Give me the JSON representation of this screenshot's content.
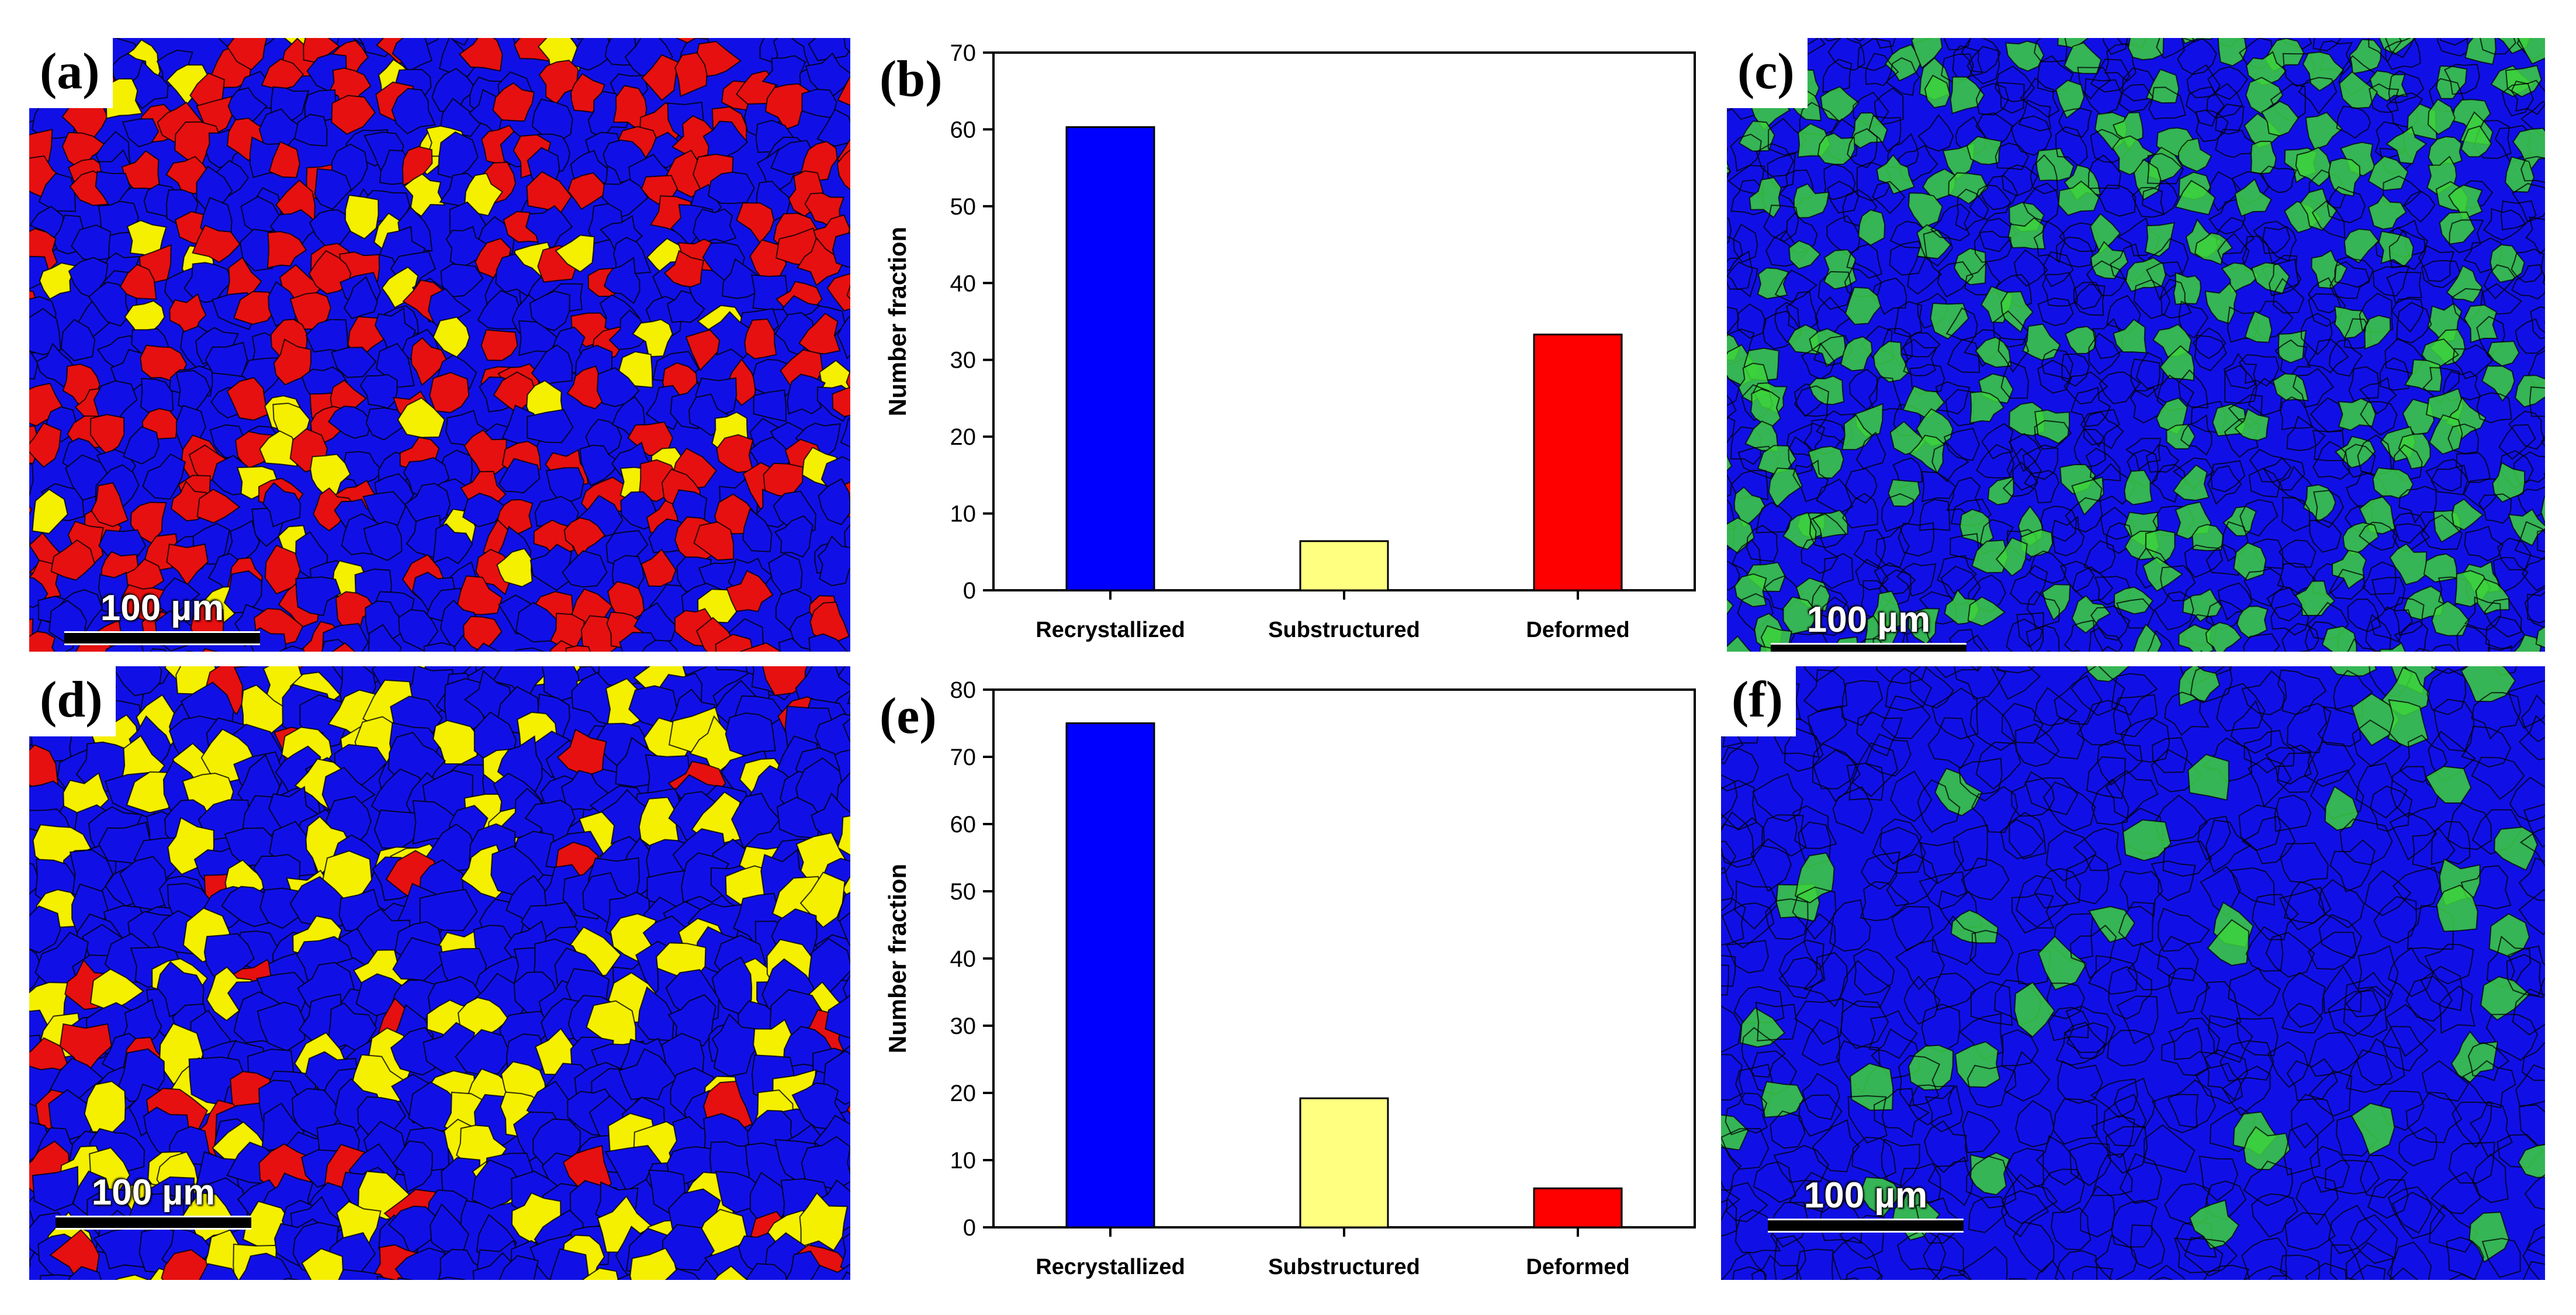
{
  "panels": {
    "a": {
      "label": "(a)",
      "scale": "100 µm"
    },
    "b": {
      "label": "(b)"
    },
    "c": {
      "label": "(c)",
      "scale": "100 µm"
    },
    "d": {
      "label": "(d)",
      "scale": "100 µm"
    },
    "e": {
      "label": "(e)"
    },
    "f": {
      "label": "(f)",
      "scale": "100 µm"
    }
  },
  "colors": {
    "recrystallized": "#0000ff",
    "substructured": "#ffff80",
    "deformed": "#ff0000",
    "map_blue": "#1010e6",
    "map_red": "#e61010",
    "map_yellow": "#f5f000",
    "kam_green": "#3cd23c"
  },
  "chart_data": [
    {
      "id": "b",
      "type": "bar",
      "categories": [
        "Recrystallized",
        "Substructured",
        "Deformed"
      ],
      "values": [
        60.3,
        6.4,
        33.3
      ],
      "title": "",
      "xlabel": "",
      "ylabel": "Number fraction",
      "ylim": [
        0,
        70
      ],
      "yticks": [
        0,
        10,
        20,
        30,
        40,
        50,
        60,
        70
      ],
      "grid": false
    },
    {
      "id": "e",
      "type": "bar",
      "categories": [
        "Recrystallized",
        "Substructured",
        "Deformed"
      ],
      "values": [
        75,
        19.2,
        5.8
      ],
      "title": "",
      "xlabel": "",
      "ylabel": "Number fraction",
      "ylim": [
        0,
        80
      ],
      "yticks": [
        0,
        10,
        20,
        30,
        40,
        50,
        60,
        70,
        80
      ],
      "grid": false
    }
  ]
}
